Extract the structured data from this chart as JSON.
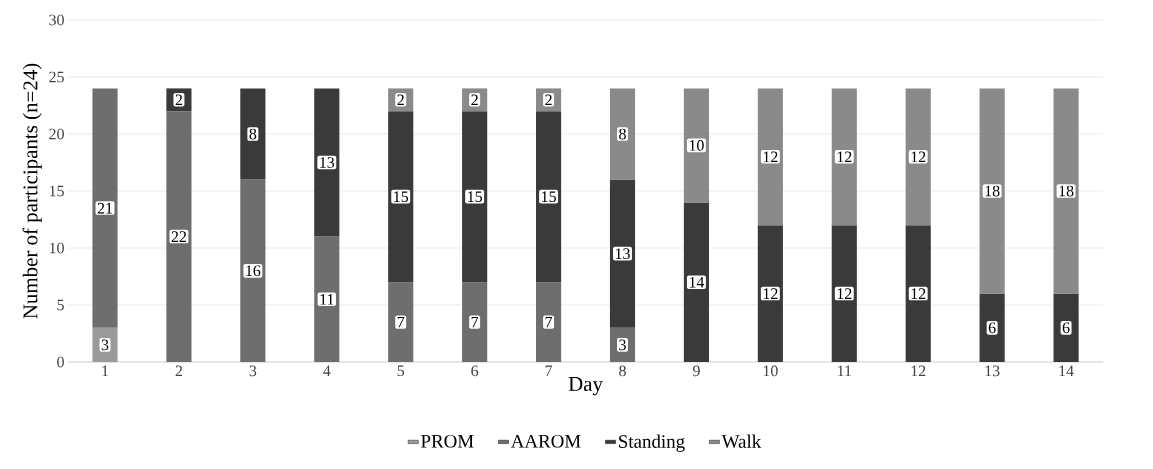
{
  "chart_data": {
    "type": "bar",
    "stacked": true,
    "xlabel": "Day",
    "ylabel": "Number of participants (n=24)",
    "categories": [
      "1",
      "2",
      "3",
      "4",
      "5",
      "6",
      "7",
      "8",
      "9",
      "10",
      "11",
      "12",
      "13",
      "14"
    ],
    "series": [
      {
        "name": "PROM",
        "color": "#9a9a9a",
        "values": [
          3,
          null,
          null,
          null,
          null,
          null,
          null,
          null,
          null,
          null,
          null,
          null,
          null,
          null
        ]
      },
      {
        "name": "AAROM",
        "color": "#6e6e6e",
        "values": [
          21,
          22,
          16,
          11,
          7,
          7,
          7,
          3,
          null,
          null,
          null,
          null,
          null,
          null
        ]
      },
      {
        "name": "Standing",
        "color": "#3a3a3a",
        "values": [
          null,
          2,
          8,
          13,
          15,
          15,
          15,
          13,
          14,
          12,
          12,
          12,
          6,
          6
        ]
      },
      {
        "name": "Walk",
        "color": "#8a8a8a",
        "values": [
          null,
          null,
          null,
          null,
          2,
          2,
          2,
          8,
          10,
          12,
          12,
          12,
          18,
          18
        ]
      }
    ],
    "ylim": [
      0,
      30
    ],
    "yticks": [
      0,
      5,
      10,
      15,
      20,
      25,
      30
    ],
    "grid": "y",
    "legend": "bottom",
    "data_labels": true
  }
}
